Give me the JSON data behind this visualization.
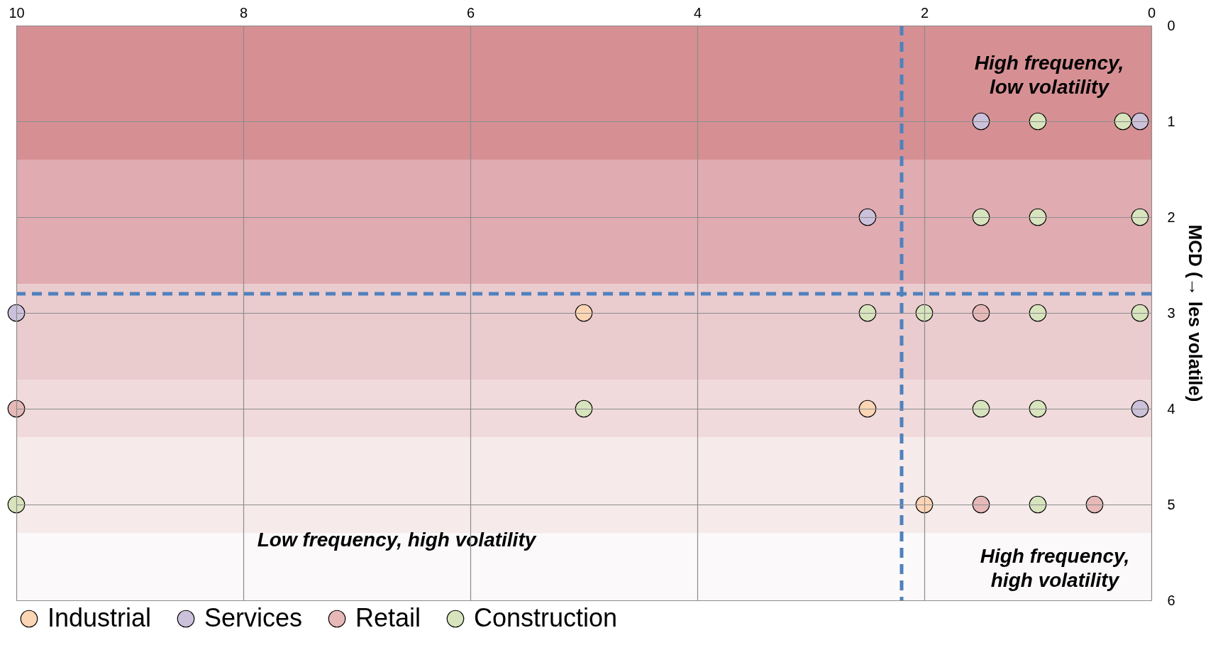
{
  "chart_data": {
    "type": "scatter",
    "ylabel": "MCD (→ les volatile)",
    "xlim": [
      10,
      0
    ],
    "xticks": [
      10,
      8,
      6,
      4,
      2,
      0
    ],
    "ylim": [
      6,
      0
    ],
    "yticks": [
      0,
      1,
      2,
      3,
      4,
      5,
      6
    ],
    "grid": true,
    "legend": "bottom",
    "marker": "circle",
    "series": [
      {
        "name": "Industrial",
        "color": "#fcd5b5",
        "x": [
          5,
          2.5,
          2
        ],
        "values": [
          3,
          4,
          5
        ]
      },
      {
        "name": "Services",
        "color": "#ccc1da",
        "x": [
          1.5,
          0.1,
          2.5,
          10,
          0.1
        ],
        "values": [
          1,
          1,
          2,
          3,
          4
        ]
      },
      {
        "name": "Retail",
        "color": "#e6b9b8",
        "x": [
          1.5,
          10,
          1.5,
          0.5
        ],
        "values": [
          3,
          4,
          5,
          5
        ]
      },
      {
        "name": "Construction",
        "color": "#d7e4bd",
        "x": [
          1,
          0.25,
          1.5,
          1,
          0.1,
          2.5,
          2,
          1,
          0.1,
          5,
          1.5,
          1,
          10,
          1
        ],
        "values": [
          1,
          1,
          2,
          2,
          2,
          3,
          3,
          3,
          3,
          4,
          4,
          4,
          5,
          5
        ]
      }
    ],
    "ref_lines": [
      {
        "axis": "x",
        "value": 2.2,
        "color": "#4f81bd",
        "line_style": "dashed"
      },
      {
        "axis": "y",
        "value": 2.8,
        "color": "#4f81bd",
        "line_style": "dashed"
      }
    ],
    "bands": [
      {
        "axis": "y",
        "from": 0,
        "to": 1.4,
        "color": "#d69094"
      },
      {
        "axis": "y",
        "from": 1.4,
        "to": 2.7,
        "color": "#e0acb1"
      },
      {
        "axis": "y",
        "from": 2.7,
        "to": 3.7,
        "color": "#eacbce"
      },
      {
        "axis": "y",
        "from": 3.7,
        "to": 4.3,
        "color": "#f0dadb"
      },
      {
        "axis": "y",
        "from": 4.3,
        "to": 5.3,
        "color": "#f6eaea"
      },
      {
        "axis": "y",
        "from": 5.3,
        "to": 6,
        "color": "#fbf9f9"
      }
    ],
    "annotations": [
      "High frequency,\nlow volatility",
      "Low frequency, high volatility",
      "High frequency,\nhigh volatility"
    ]
  }
}
